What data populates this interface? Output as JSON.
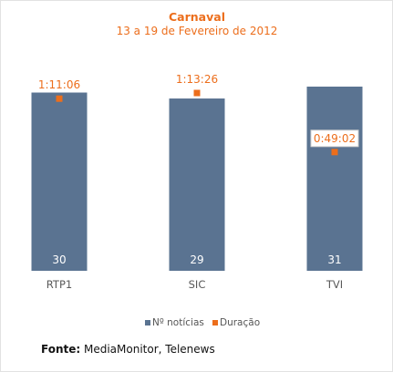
{
  "chart_data": {
    "type": "bar",
    "title": "Carnaval",
    "subtitle": "13 a 19 de Fevereiro de 2012",
    "categories": [
      "RTP1",
      "SIC",
      "TVI"
    ],
    "series": [
      {
        "name": "Nº notícias",
        "values": [
          30,
          29,
          31
        ],
        "color": "#5a7391"
      },
      {
        "name": "Duração",
        "values": [
          "1:11:06",
          "1:13:26",
          "0:49:02"
        ],
        "seconds": [
          4266,
          4406,
          2942
        ],
        "color": "#ec6e1c"
      }
    ],
    "legend_position": "bottom",
    "grid": false
  },
  "source": {
    "label": "Fonte:",
    "text": " MediaMonitor, Telenews"
  }
}
